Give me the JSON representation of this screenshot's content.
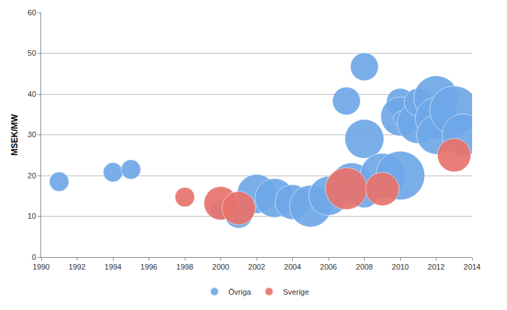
{
  "chart_data": {
    "type": "bubble",
    "y_label": "MSEK/MW",
    "xlim": [
      1990,
      2014
    ],
    "xticks": [
      1990,
      1992,
      1994,
      1996,
      1998,
      2000,
      2002,
      2004,
      2006,
      2008,
      2010,
      2012,
      2014
    ],
    "ylim": [
      0,
      60
    ],
    "yticks": [
      0,
      10,
      20,
      30,
      40,
      50,
      60
    ],
    "grid": true,
    "legend": "bottom",
    "marker": "circle",
    "series": [
      {
        "name": "Övriga",
        "color": "#6FA8E8",
        "x": [
          1991,
          1994,
          1995,
          2000,
          2001,
          2002,
          2003,
          2004,
          2005,
          2006,
          2007,
          2007.3,
          2008,
          2008,
          2008,
          2009,
          2010,
          2010,
          2010,
          2010,
          2011,
          2011,
          2012,
          2012,
          2012,
          2013,
          2013.5
        ],
        "values": [
          18.5,
          20.8,
          21.5,
          11.5,
          10.5,
          15.5,
          14.5,
          13.5,
          12.5,
          15,
          38.3,
          18,
          46.7,
          15.5,
          29,
          20,
          38,
          34.5,
          34,
          20,
          33,
          38,
          39,
          34,
          30,
          36,
          30
        ],
        "size": [
          28,
          28,
          28,
          28,
          40,
          56,
          56,
          50,
          60,
          56,
          40,
          60,
          40,
          40,
          56,
          64,
          40,
          56,
          20,
          70,
          60,
          40,
          64,
          60,
          56,
          70,
          60
        ]
      },
      {
        "name": "Sverige",
        "color": "#E8736C",
        "x": [
          1998,
          2000,
          2001,
          2007,
          2009,
          2013
        ],
        "values": [
          14.7,
          13.2,
          12,
          16.8,
          16.7,
          25
        ],
        "size": [
          28,
          48,
          48,
          60,
          48,
          48
        ]
      }
    ]
  }
}
